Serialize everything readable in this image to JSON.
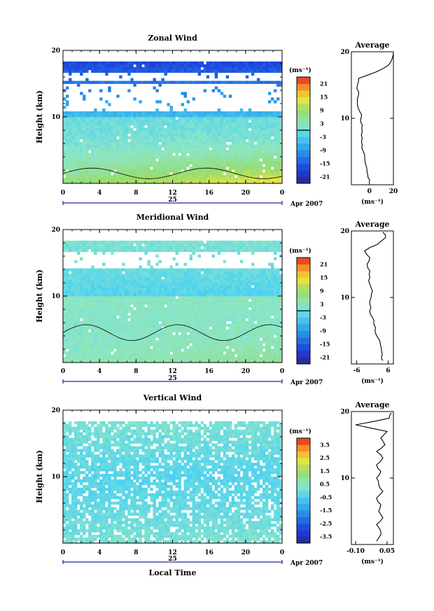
{
  "chart_data": [
    {
      "type": "heatmap",
      "title": "Zonal Wind",
      "ylabel": "Height (km)",
      "xlabel": "",
      "x_ticks": [
        "0",
        "4",
        "8",
        "12",
        "16",
        "20",
        "0"
      ],
      "y_ticks": [
        "20",
        "10"
      ],
      "ylim": [
        0,
        20
      ],
      "xlim": [
        0,
        24
      ],
      "date_label": "25",
      "month_label": "Apr 2007",
      "colorbar": {
        "unit": "(ms⁻¹)",
        "ticks": [
          "21",
          "15",
          "9",
          "3",
          "-3",
          "-9",
          "-15",
          "-21"
        ],
        "range": [
          -24,
          24
        ],
        "zero_line": true
      },
      "field": {
        "low_level_values": [
          0,
          5,
          12,
          15
        ],
        "upper_values": [
          -5,
          -20
        ],
        "gaps_km": [
          [
            11,
            15
          ],
          [
            15.5,
            16.5
          ]
        ]
      },
      "profile": {
        "title": "Average",
        "x_ticks": [
          "0",
          "20"
        ],
        "xlim": [
          -15,
          20
        ],
        "unit": "(ms⁻¹)",
        "y_ticks": [
          "20",
          "10"
        ],
        "heights": [
          0.5,
          1,
          2,
          3,
          4,
          5,
          6,
          7,
          8,
          9,
          10,
          11,
          12,
          13,
          14,
          15,
          16,
          17,
          18,
          19,
          19.8
        ],
        "values": [
          0,
          -1,
          -2,
          -3,
          -4,
          -5,
          -6,
          -6,
          -6,
          -6,
          -7,
          -8,
          -10,
          -10,
          -9,
          -10,
          -9,
          6,
          16,
          19,
          20
        ]
      }
    },
    {
      "type": "heatmap",
      "title": "Meridional Wind",
      "ylabel": "Height (km)",
      "xlabel": "",
      "x_ticks": [
        "0",
        "4",
        "8",
        "12",
        "16",
        "20",
        "0"
      ],
      "y_ticks": [
        "20",
        "10"
      ],
      "ylim": [
        0,
        20
      ],
      "xlim": [
        0,
        24
      ],
      "date_label": "25",
      "month_label": "Apr 2007",
      "colorbar": {
        "unit": "(ms⁻¹)",
        "ticks": [
          "21",
          "15",
          "9",
          "3",
          "-3",
          "-9",
          "-15",
          "-21"
        ],
        "range": [
          -24,
          24
        ],
        "zero_line": true
      },
      "field": {
        "low_level_values": [
          3,
          5,
          6
        ],
        "upper_values": [
          -2,
          2
        ],
        "gaps_km": [
          [
            14,
            16.5
          ]
        ]
      },
      "profile": {
        "title": "Average",
        "x_ticks": [
          "-6",
          "6"
        ],
        "xlim": [
          -8,
          8
        ],
        "unit": "(ms⁻¹)",
        "y_ticks": [
          "20",
          "10"
        ],
        "heights": [
          0.5,
          1,
          2,
          3,
          4,
          5,
          6,
          7,
          8,
          9,
          10,
          11,
          12,
          13,
          14,
          15,
          16,
          17,
          18,
          19,
          19.8
        ],
        "values": [
          4,
          3.5,
          3.5,
          3,
          2,
          1,
          0.5,
          0,
          -1,
          -1,
          -0.5,
          0,
          -1,
          -1,
          -1,
          -2,
          -1,
          -3,
          2,
          5,
          4
        ]
      }
    },
    {
      "type": "heatmap",
      "title": "Vertical Wind",
      "ylabel": "Height (km)",
      "xlabel": "Local Time",
      "x_ticks": [
        "0",
        "4",
        "8",
        "12",
        "16",
        "20",
        "0"
      ],
      "y_ticks": [
        "20",
        "10"
      ],
      "ylim": [
        0,
        20
      ],
      "xlim": [
        0,
        24
      ],
      "date_label": "25",
      "month_label": "Apr 2007",
      "colorbar": {
        "unit": "(ms⁻¹)",
        "ticks": [
          "3.5",
          "2.5",
          "1.5",
          "0.5",
          "-0.5",
          "-1.5",
          "-2.5",
          "-3.5"
        ],
        "range": [
          -4,
          4
        ],
        "zero_line": false
      },
      "field": {
        "low_level_values": [
          -0.3,
          0,
          0.3
        ],
        "upper_values": [
          -0.3,
          0.3
        ],
        "gaps_km": []
      },
      "profile": {
        "title": "Average",
        "x_ticks": [
          "-0.10",
          "0.05"
        ],
        "xlim": [
          -0.12,
          0.08
        ],
        "unit": "(ms⁻¹)",
        "y_ticks": [
          "20",
          "10"
        ],
        "heights": [
          0.5,
          1,
          2,
          3,
          4,
          5,
          6,
          7,
          8,
          9,
          10,
          11,
          12,
          13,
          14,
          15,
          16,
          17,
          18,
          19,
          19.8
        ],
        "values": [
          0,
          0.01,
          0.02,
          0,
          0.03,
          0.01,
          0.02,
          0,
          0.03,
          0.01,
          0,
          0.02,
          0,
          0.03,
          0,
          0.04,
          0.02,
          0.05,
          -0.1,
          0.06,
          0.07
        ]
      }
    }
  ]
}
